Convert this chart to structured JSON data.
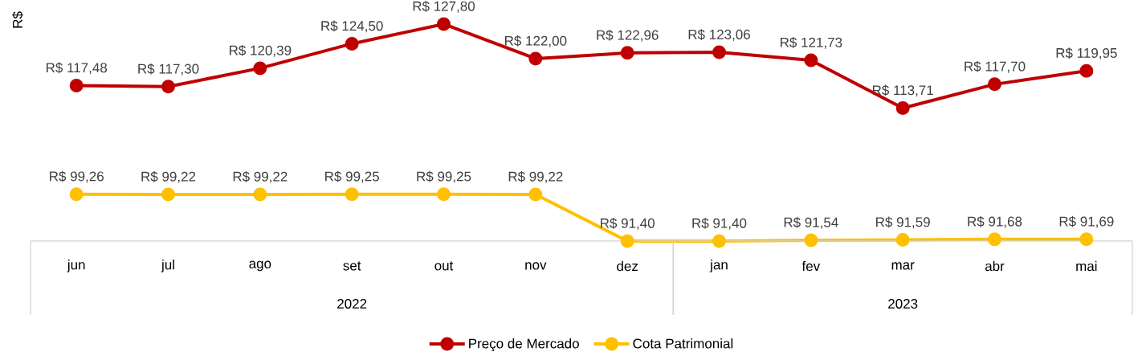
{
  "chart_data": {
    "type": "line",
    "ylabel": "R$",
    "categories": [
      "jun",
      "jul",
      "ago",
      "set",
      "out",
      "nov",
      "dez",
      "jan",
      "fev",
      "mar",
      "abr",
      "mai"
    ],
    "annotations": [
      "2022",
      "2023"
    ],
    "series": [
      {
        "name": "Preço de Mercado",
        "color": "#c00000",
        "values": [
          117.48,
          117.3,
          120.39,
          124.5,
          127.8,
          122.0,
          122.96,
          123.06,
          121.73,
          113.71,
          117.7,
          119.95
        ],
        "value_labels": [
          "R$ 117,48",
          "R$ 117,30",
          "R$ 120,39",
          "R$ 124,50",
          "R$ 127,80",
          "R$ 122,00",
          "R$ 122,96",
          "R$ 123,06",
          "R$ 121,73",
          "R$ 113,71",
          "R$ 117,70",
          "R$ 119,95"
        ]
      },
      {
        "name": "Cota Patrimonial",
        "color": "#ffc000",
        "values": [
          99.26,
          99.22,
          99.22,
          99.25,
          99.25,
          99.22,
          91.4,
          91.4,
          91.54,
          91.59,
          91.68,
          91.69
        ],
        "value_labels": [
          "R$ 99,26",
          "R$ 99,22",
          "R$ 99,22",
          "R$ 99,25",
          "R$ 99,25",
          "R$ 99,22",
          "R$ 91,40",
          "R$ 91,40",
          "R$ 91,54",
          "R$ 91,59",
          "R$ 91,68",
          "R$ 91,69"
        ]
      }
    ],
    "marker": "circle",
    "line_style": "solid",
    "legend": "bottom"
  }
}
